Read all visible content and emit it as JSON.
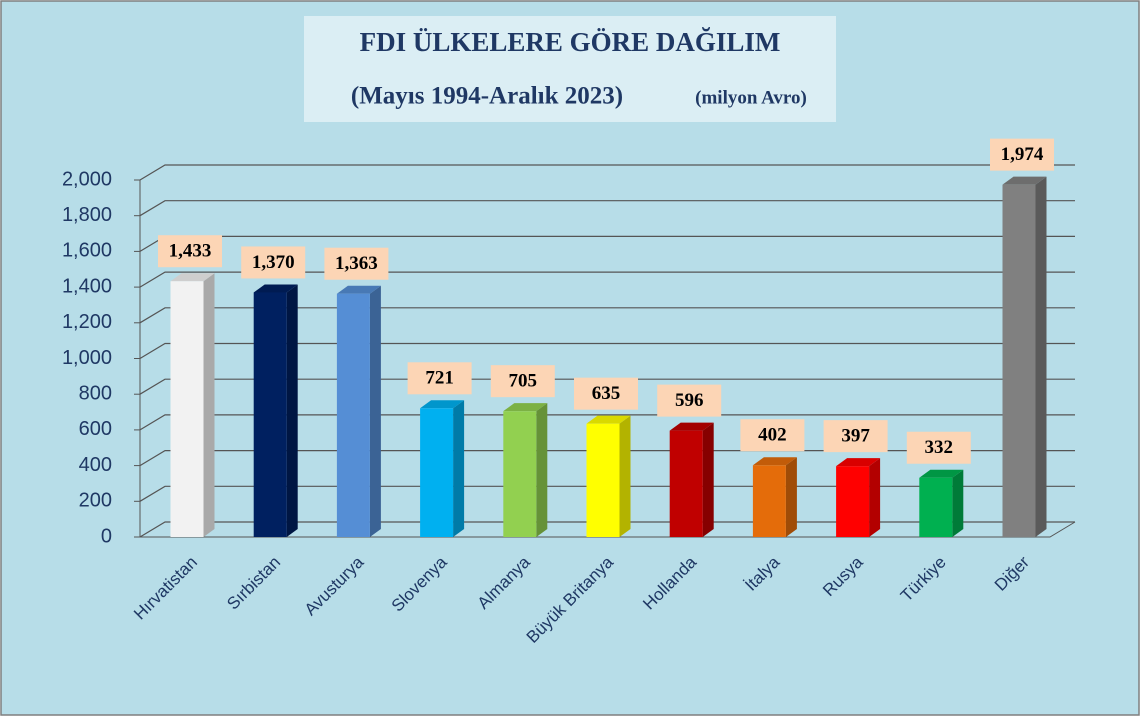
{
  "chart_data": {
    "type": "bar3d",
    "title": "FDI ÜLKELERE GÖRE DAĞILIM",
    "subtitle": "(Mayıs 1994-Aralık 2023)",
    "unit_label": "(milyon Avro)",
    "categories": [
      "Hırvatistan",
      "Sırbistan",
      "Avusturya",
      "Slovenya",
      "Almanya",
      "Büyük Britanya",
      "Hollanda",
      "İtalya",
      "Rusya",
      "Türkiye",
      "Diğer"
    ],
    "values": [
      1433,
      1370,
      1363,
      721,
      705,
      635,
      596,
      402,
      397,
      332,
      1974
    ],
    "value_labels": [
      "1,433",
      "1,370",
      "1,363",
      "721",
      "705",
      "635",
      "596",
      "402",
      "397",
      "332",
      "1,974"
    ],
    "colors": [
      "#f2f2f2",
      "#002060",
      "#558ed5",
      "#00b0f0",
      "#92d050",
      "#ffff00",
      "#c00000",
      "#e46c0a",
      "#ff0000",
      "#00b050",
      "#808080"
    ],
    "ylim": [
      0,
      2000
    ],
    "yticks": [
      0,
      200,
      400,
      600,
      800,
      {
        "value": 1000,
        "label": "1,000"
      },
      {
        "value": 1200,
        "label": "1,200"
      },
      {
        "value": 1400,
        "label": "1,400"
      },
      {
        "value": 1600,
        "label": "1,600"
      },
      {
        "value": 1800,
        "label": "1,800"
      },
      {
        "value": 2000,
        "label": "2,000"
      }
    ],
    "grid": true
  }
}
